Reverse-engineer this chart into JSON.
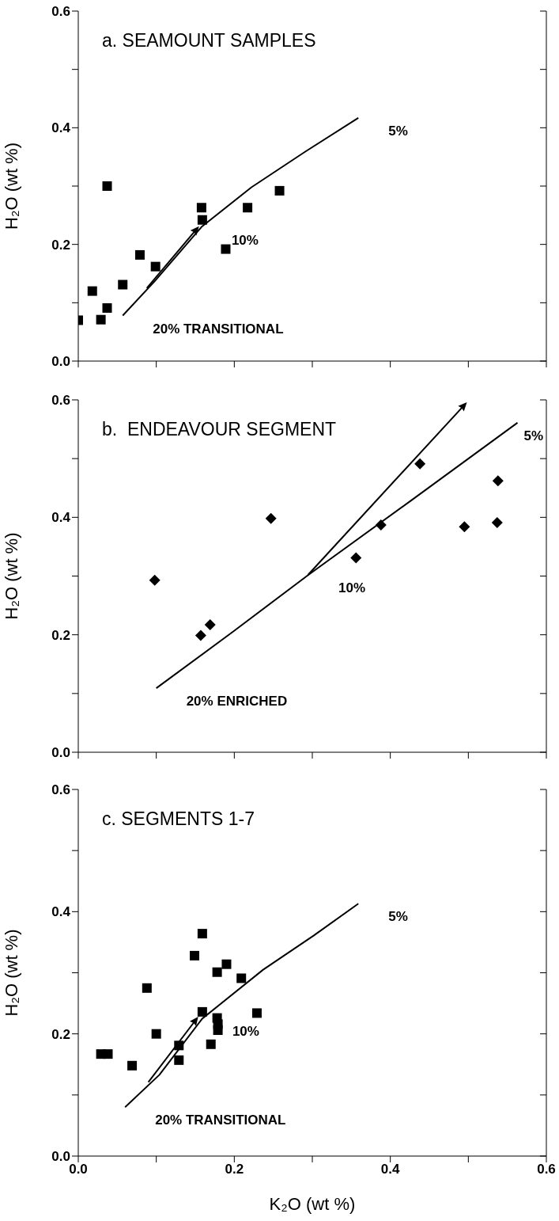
{
  "chart_data": [
    {
      "type": "scatter",
      "title": "a. SEAMOUNT SAMPLES",
      "ylabel": "H₂O (wt %)",
      "xlim": [
        0,
        0.6
      ],
      "xticks": [
        0,
        0.1,
        0.2,
        0.3,
        0.4,
        0.5,
        0.6
      ],
      "ylim": [
        0,
        0.6
      ],
      "yticks": [
        {
          "value": 0,
          "label": "0.0"
        },
        {
          "value": 0.1,
          "label": null
        },
        0.2,
        {
          "value": 0.3,
          "label": null
        },
        0.4,
        {
          "value": 0.5,
          "label": null
        },
        0.6
      ],
      "tick_labels": "y",
      "annotations": [
        {
          "text": "5%",
          "x": 0.359,
          "y": 0.417
        },
        {
          "text": "10%",
          "x": 0.158,
          "y": 0.23
        },
        {
          "text": "20% TRANSITIONAL",
          "x": 0.057,
          "y": 0.078
        }
      ],
      "series": [
        {
          "marker": "square",
          "color": "#000000",
          "x": [
            0.0,
            0.018,
            0.037,
            0.029,
            0.037,
            0.057,
            0.079,
            0.099,
            0.158,
            0.159,
            0.189,
            0.217,
            0.258
          ],
          "values": [
            0.07,
            0.12,
            0.3,
            0.071,
            0.091,
            0.131,
            0.182,
            0.162,
            0.263,
            0.242,
            0.192,
            0.263,
            0.292
          ]
        },
        {
          "type": "line",
          "marker": "none",
          "color": "#000000",
          "x": [
            0.057,
            0.098,
            0.158,
            0.222,
            0.291,
            0.359
          ],
          "values": [
            0.078,
            0.137,
            0.23,
            0.298,
            0.359,
            0.417
          ]
        }
      ]
    },
    {
      "type": "scatter",
      "title": "b.  ENDEAVOUR SEGMENT",
      "ylabel": "H₂O (wt %)",
      "xlim": [
        0,
        0.6
      ],
      "xticks": [
        0,
        0.1,
        0.2,
        0.3,
        0.4,
        0.5,
        0.6
      ],
      "ylim": [
        0,
        0.6
      ],
      "yticks": [
        {
          "value": 0,
          "label": "0.0"
        },
        {
          "value": 0.1,
          "label": null
        },
        0.2,
        {
          "value": 0.3,
          "label": null
        },
        0.4,
        {
          "value": 0.5,
          "label": null
        },
        0.6
      ],
      "tick_labels": "y",
      "annotations": [
        {
          "text": "5%",
          "x": 0.563,
          "y": 0.561
        },
        {
          "text": "10%",
          "x": 0.295,
          "y": 0.302
        },
        {
          "text": "20% ENRICHED",
          "x": 0.1,
          "y": 0.109
        }
      ],
      "series": [
        {
          "marker": "diamond",
          "color": "#000000",
          "x": [
            0.098,
            0.157,
            0.169,
            0.247,
            0.356,
            0.388,
            0.438,
            0.495,
            0.537,
            0.538
          ],
          "values": [
            0.293,
            0.199,
            0.217,
            0.398,
            0.331,
            0.387,
            0.491,
            0.384,
            0.391,
            0.462
          ]
        },
        {
          "type": "line",
          "marker": "none",
          "color": "#000000",
          "x": [
            0.1,
            0.198,
            0.295,
            0.428,
            0.563
          ],
          "values": [
            0.109,
            0.205,
            0.302,
            0.43,
            0.561
          ]
        }
      ]
    },
    {
      "type": "scatter",
      "title": "c. SEGMENTS 1-7",
      "ylabel": "H₂O (wt %)",
      "xlabel": "K₂O (wt %)",
      "xlim": [
        0,
        0.6
      ],
      "xticks": [
        {
          "value": 0,
          "label": "0.0"
        },
        {
          "value": 0.1,
          "label": null
        },
        0.2,
        {
          "value": 0.3,
          "label": null
        },
        0.4,
        {
          "value": 0.5,
          "label": null
        },
        0.6
      ],
      "ylim": [
        0,
        0.6
      ],
      "yticks": [
        {
          "value": 0,
          "label": "0.0"
        },
        {
          "value": 0.1,
          "label": null
        },
        0.2,
        {
          "value": 0.3,
          "label": null
        },
        0.4,
        {
          "value": 0.5,
          "label": null
        },
        0.6
      ],
      "annotations": [
        {
          "text": "5%",
          "x": 0.359,
          "y": 0.413
        },
        {
          "text": "10%",
          "x": 0.159,
          "y": 0.225
        },
        {
          "text": "20% TRANSITIONAL",
          "x": 0.06,
          "y": 0.08
        }
      ],
      "series": [
        {
          "marker": "square",
          "color": "#000000",
          "x": [
            0.029,
            0.038,
            0.069,
            0.088,
            0.1,
            0.129,
            0.129,
            0.149,
            0.159,
            0.159,
            0.178,
            0.19,
            0.178,
            0.179,
            0.179,
            0.17,
            0.209,
            0.229
          ],
          "values": [
            0.167,
            0.167,
            0.148,
            0.275,
            0.2,
            0.181,
            0.157,
            0.328,
            0.364,
            0.236,
            0.301,
            0.314,
            0.226,
            0.216,
            0.206,
            0.183,
            0.291,
            0.234
          ]
        },
        {
          "type": "line",
          "marker": "none",
          "color": "#000000",
          "x": [
            0.06,
            0.104,
            0.159,
            0.237,
            0.302,
            0.359
          ],
          "values": [
            0.08,
            0.133,
            0.225,
            0.305,
            0.361,
            0.413
          ]
        }
      ]
    }
  ]
}
